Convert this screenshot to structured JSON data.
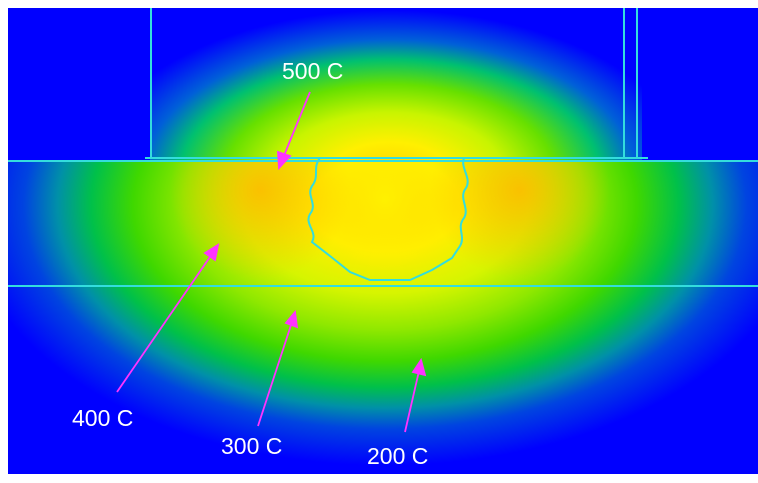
{
  "labels": {
    "t500": "500 C",
    "t400": "400 C",
    "t300": "300 C",
    "t200": "200 C"
  },
  "colors": {
    "background": "#ffffff",
    "cold": "#0000ff",
    "boundary": "#33dddd",
    "arrow": "#ff33ff",
    "label_text": "#ffffff",
    "hot": "#ffcc00"
  }
}
